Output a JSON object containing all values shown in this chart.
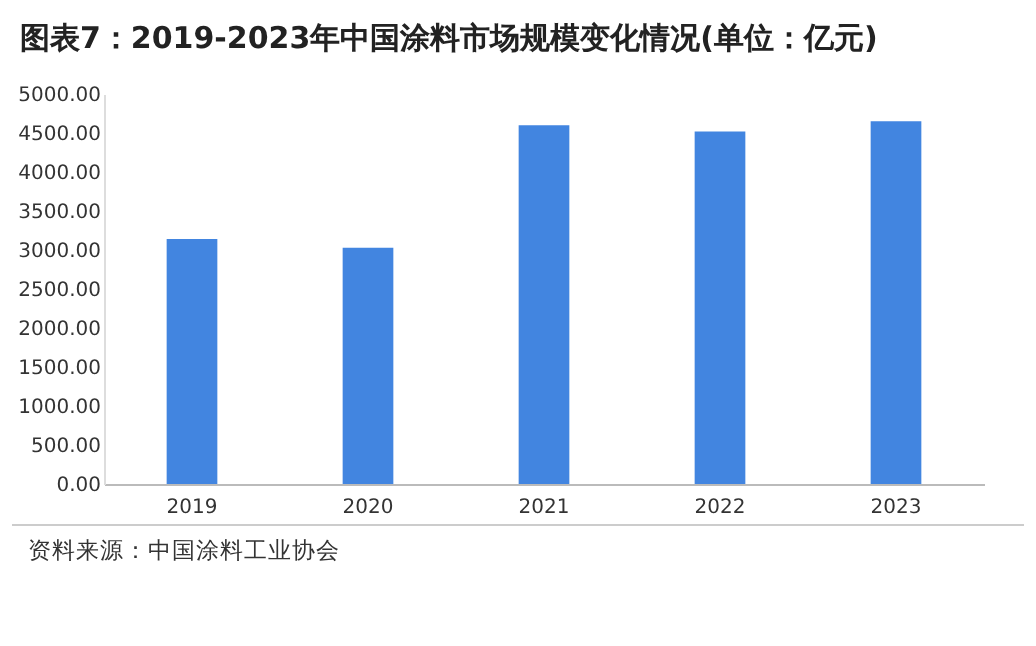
{
  "chart_data": {
    "type": "bar",
    "title": "图表7：2019-2023年中国涂料市场规模变化情况(单位：亿元)",
    "categories": [
      "2019",
      "2020",
      "2021",
      "2022",
      "2023"
    ],
    "values": [
      3140,
      3030,
      4600,
      4520,
      4650
    ],
    "color": "#4285e0",
    "ylim": [
      0,
      5000
    ],
    "yticks": [
      {
        "value": 0,
        "label": "0.00"
      },
      {
        "value": 500,
        "label": "500.00"
      },
      {
        "value": 1000,
        "label": "1000.00"
      },
      {
        "value": 1500,
        "label": "1500.00"
      },
      {
        "value": 2000,
        "label": "2000.00"
      },
      {
        "value": 2500,
        "label": "2500.00"
      },
      {
        "value": 3000,
        "label": "3000.00"
      },
      {
        "value": 3500,
        "label": "3500.00"
      },
      {
        "value": 4000,
        "label": "4000.00"
      },
      {
        "value": 4500,
        "label": "4500.00"
      },
      {
        "value": 5000,
        "label": "5000.00"
      }
    ],
    "grid": false,
    "annotations": [
      "资料来源：中国涂料工业协会"
    ]
  }
}
